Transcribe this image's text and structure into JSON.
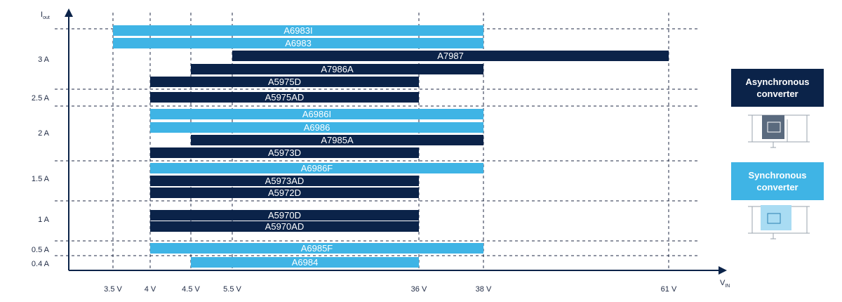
{
  "chart_data": {
    "type": "bar",
    "orientation": "horizontal-range",
    "xlabel": {
      "main": "V",
      "sub": "IN"
    },
    "ylabel": {
      "main": "I",
      "sub": "out"
    },
    "x_ticks": [
      3.5,
      4,
      4.5,
      5.5,
      36,
      38,
      61
    ],
    "x_tick_labels": [
      "3.5 V",
      "4 V",
      "4.5 V",
      "5.5 V",
      "36 V",
      "38 V",
      "61 V"
    ],
    "y_tick_labels": [
      "3 A",
      "2.5 A",
      "2 A",
      "1.5 A",
      "1 A",
      "0.5 A",
      "0.4 A"
    ],
    "series": [
      {
        "name": "A6983I",
        "vmin": 3.5,
        "vmax": 38,
        "type": "synchronous"
      },
      {
        "name": "A6983",
        "vmin": 3.5,
        "vmax": 38,
        "type": "synchronous"
      },
      {
        "name": "A7987",
        "vmin": 5.5,
        "vmax": 61,
        "type": "asynchronous"
      },
      {
        "name": "A7986A",
        "vmin": 4.5,
        "vmax": 38,
        "type": "asynchronous"
      },
      {
        "name": "A5975D",
        "vmin": 4,
        "vmax": 36,
        "type": "asynchronous"
      },
      {
        "name": "A5975AD",
        "vmin": 4,
        "vmax": 36,
        "type": "asynchronous"
      },
      {
        "name": "A6986I",
        "vmin": 4,
        "vmax": 38,
        "type": "synchronous"
      },
      {
        "name": "A6986",
        "vmin": 4,
        "vmax": 38,
        "type": "synchronous"
      },
      {
        "name": "A7985A",
        "vmin": 4.5,
        "vmax": 38,
        "type": "asynchronous"
      },
      {
        "name": "A5973D",
        "vmin": 4,
        "vmax": 36,
        "type": "asynchronous"
      },
      {
        "name": "A6986F",
        "vmin": 4,
        "vmax": 38,
        "type": "synchronous"
      },
      {
        "name": "A5973AD",
        "vmin": 4,
        "vmax": 36,
        "type": "asynchronous"
      },
      {
        "name": "A5972D",
        "vmin": 4,
        "vmax": 36,
        "type": "asynchronous"
      },
      {
        "name": "A5970D",
        "vmin": 4,
        "vmax": 36,
        "type": "asynchronous"
      },
      {
        "name": "A5970AD",
        "vmin": 4,
        "vmax": 36,
        "type": "asynchronous"
      },
      {
        "name": "A6985F",
        "vmin": 4,
        "vmax": 38,
        "type": "synchronous"
      },
      {
        "name": "A6984",
        "vmin": 4.5,
        "vmax": 36,
        "type": "synchronous"
      }
    ],
    "grid": "dashed",
    "colors": {
      "asynchronous": "#0b2349",
      "synchronous": "#3fb4e5"
    }
  },
  "legend": {
    "async_line1": "Asynchronous",
    "async_line2": "converter",
    "sync_line1": "Synchronous",
    "sync_line2": "converter"
  }
}
